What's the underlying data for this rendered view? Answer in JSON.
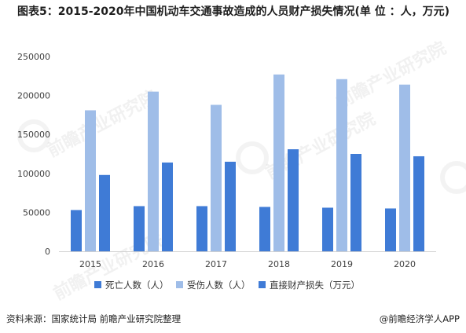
{
  "title": "图表5：2015-2020年中国机动车交通事故造成的人员财产损失情况(单 位 ：人，万元)",
  "watermark_text": "前瞻产业研究院",
  "source_text": "资料来源：国家统计局 前瞻产业研究院整理",
  "logo_text": "@前瞻经济学人APP",
  "chart_data": {
    "type": "bar",
    "categories": [
      "2015",
      "2016",
      "2017",
      "2018",
      "2019",
      "2020"
    ],
    "series": [
      {
        "name": "死亡人数（人）",
        "color": "#3f7bd6",
        "values": [
          53000,
          58000,
          58000,
          57000,
          56000,
          55000
        ]
      },
      {
        "name": "受伤人数（人）",
        "color": "#9fbde8",
        "values": [
          181000,
          205000,
          188000,
          227000,
          221000,
          214000
        ]
      },
      {
        "name": "直接财产损失（万元）",
        "color": "#3f7bd6",
        "values": [
          98000,
          114000,
          115000,
          131000,
          125000,
          122000
        ]
      }
    ],
    "ylim": [
      0,
      250000
    ],
    "yticks": [
      "0",
      "50000",
      "100000",
      "150000",
      "200000",
      "250000"
    ],
    "grid": false,
    "legend_position": "bottom"
  }
}
